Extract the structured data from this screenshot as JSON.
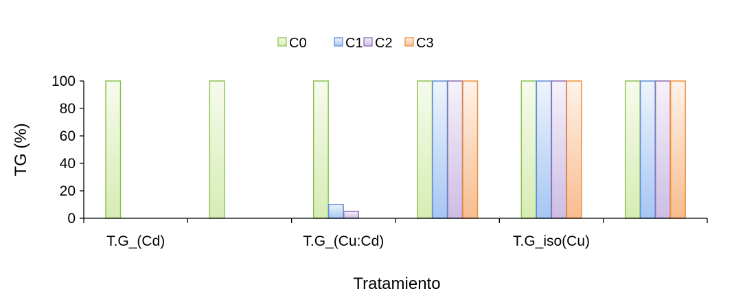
{
  "chart_data": {
    "type": "bar",
    "categories": [
      "T.G_(Cd)",
      "",
      "T.G_(Cu:Cd)",
      "",
      "T.G_iso(Cu)",
      ""
    ],
    "series": [
      {
        "name": "C0",
        "values": [
          100,
          100,
          100,
          100,
          100,
          100
        ]
      },
      {
        "name": "C1",
        "values": [
          0,
          0,
          10,
          100,
          100,
          100
        ]
      },
      {
        "name": "C2",
        "values": [
          0,
          0,
          5,
          100,
          100,
          100
        ]
      },
      {
        "name": "C3",
        "values": [
          0,
          0,
          0,
          100,
          100,
          100
        ]
      }
    ],
    "xlabel": "Tratamiento",
    "ylabel": "TG (%)",
    "ylim": [
      0,
      100
    ],
    "yticks": [
      "0",
      "20",
      "40",
      "60",
      "80",
      "100"
    ],
    "grid": false,
    "legend": "top-center",
    "colors": {
      "C0": {
        "fill_top": "#f6fbec",
        "fill_bottom": "#d7ecb4",
        "stroke": "#8cc152"
      },
      "C1": {
        "fill_top": "#eef4fd",
        "fill_bottom": "#a6c6f2",
        "stroke": "#5b8fd6"
      },
      "C2": {
        "fill_top": "#f6f2fa",
        "fill_bottom": "#cdbde3",
        "stroke": "#8b6fb5"
      },
      "C3": {
        "fill_top": "#fff3ea",
        "fill_bottom": "#f7bc8e",
        "stroke": "#f18d3c"
      }
    }
  }
}
